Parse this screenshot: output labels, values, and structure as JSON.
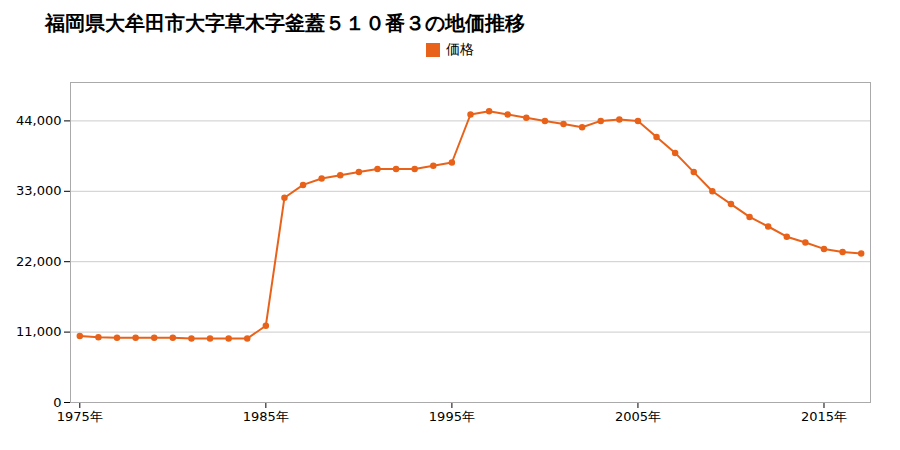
{
  "chart_data": {
    "type": "line",
    "title": "福岡県大牟田市大字草木字釜蓋５１０番３の地価推移",
    "x": [
      1975,
      1976,
      1977,
      1978,
      1979,
      1980,
      1981,
      1982,
      1983,
      1984,
      1985,
      1986,
      1987,
      1988,
      1989,
      1990,
      1991,
      1992,
      1993,
      1994,
      1995,
      1996,
      1997,
      1998,
      1999,
      2000,
      2001,
      2002,
      2003,
      2004,
      2005,
      2006,
      2007,
      2008,
      2009,
      2010,
      2011,
      2012,
      2013,
      2014,
      2015,
      2016,
      2017
    ],
    "series": [
      {
        "name": "価格",
        "color": "#e8621a",
        "marker": "circle",
        "values": [
          10400,
          10200,
          10100,
          10100,
          10100,
          10100,
          10000,
          10000,
          10000,
          10000,
          12000,
          32000,
          34000,
          35000,
          35500,
          36000,
          36500,
          36500,
          36500,
          37000,
          37500,
          45000,
          45500,
          45000,
          44500,
          44000,
          43500,
          43000,
          44000,
          44200,
          44000,
          41500,
          39000,
          36000,
          33000,
          31000,
          29000,
          27500,
          25900,
          25000,
          24000,
          23500,
          23300
        ]
      }
    ],
    "xlim": [
      1974.5,
      2017.5
    ],
    "xticks": [
      {
        "value": 1975,
        "label": "1975年"
      },
      {
        "value": 1985,
        "label": "1985年"
      },
      {
        "value": 1995,
        "label": "1995年"
      },
      {
        "value": 2005,
        "label": "2005年"
      },
      {
        "value": 2015,
        "label": "2015年"
      }
    ],
    "ylim": [
      0,
      50000
    ],
    "yticks": [
      0,
      {
        "value": 11000,
        "label": "11,000"
      },
      {
        "value": 22000,
        "label": "22,000"
      },
      {
        "value": 33000,
        "label": "33,000"
      },
      {
        "value": 44000,
        "label": "44,000"
      }
    ],
    "grid": true,
    "legend": "top"
  }
}
